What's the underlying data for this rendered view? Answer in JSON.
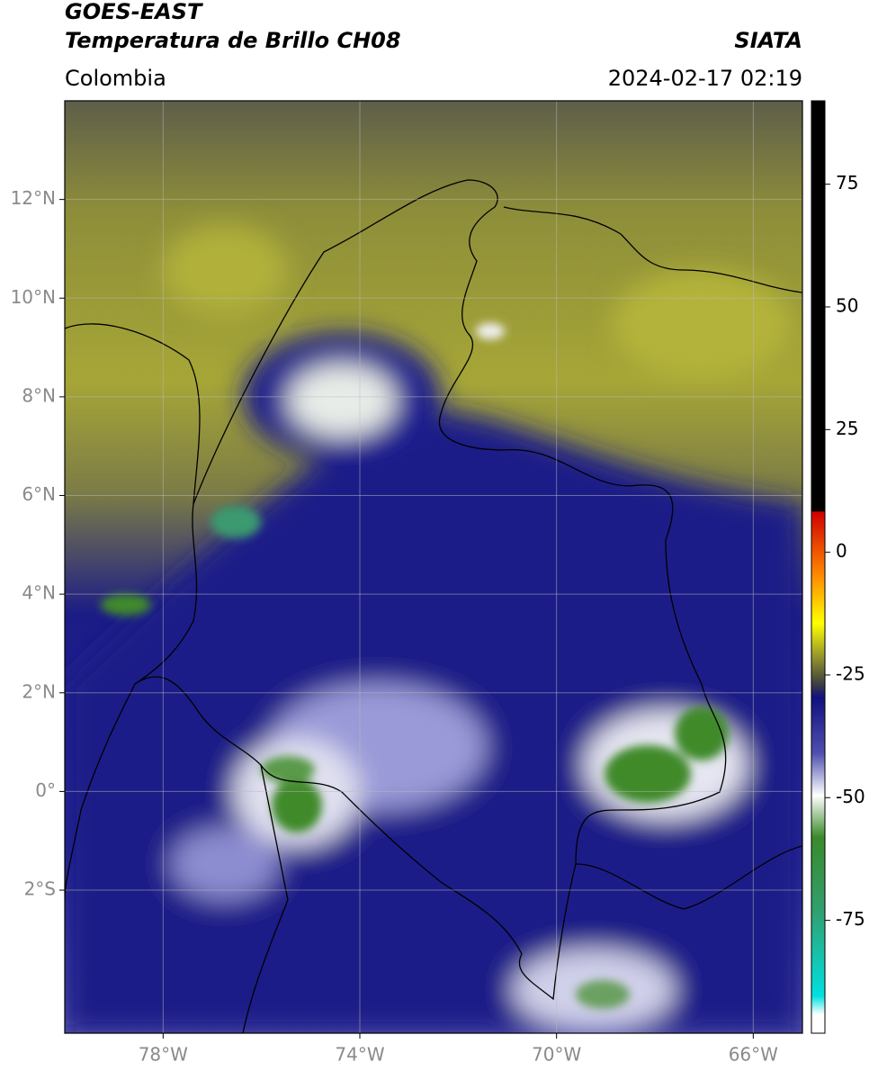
{
  "header": {
    "title": "GOES-EAST",
    "subtitle": "Temperatura de Brillo CH08",
    "source": "SIATA",
    "region": "Colombia",
    "datetime": "2024-02-17 02:19"
  },
  "map": {
    "xlim": [
      -80,
      -65
    ],
    "ylim": [
      -4.9,
      14
    ],
    "grid": true,
    "xticks": [
      {
        "value": -78,
        "label": "78°W"
      },
      {
        "value": -74,
        "label": "74°W"
      },
      {
        "value": -70,
        "label": "70°W"
      },
      {
        "value": -66,
        "label": "66°W"
      }
    ],
    "yticks": [
      {
        "value": 12,
        "label": "12°N"
      },
      {
        "value": 10,
        "label": "10°N"
      },
      {
        "value": 8,
        "label": "8°N"
      },
      {
        "value": 6,
        "label": "6°N"
      },
      {
        "value": 4,
        "label": "4°N"
      },
      {
        "value": 2,
        "label": "2°N"
      },
      {
        "value": 0,
        "label": "0°"
      },
      {
        "value": -2,
        "label": "2°S"
      }
    ]
  },
  "colorbar": {
    "lim": [
      -98,
      92
    ],
    "ticks": [
      75,
      50,
      25,
      0,
      -25,
      -50,
      -75
    ]
  }
}
